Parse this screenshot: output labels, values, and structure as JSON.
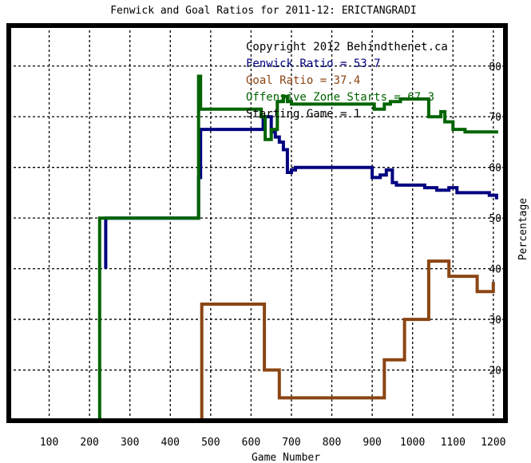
{
  "chart_data": {
    "type": "line",
    "title": "Fenwick and Goal Ratios for 2011-12: ERICTANGRADI",
    "xlabel": "Game Number",
    "ylabel": "Percentage",
    "xlim": [
      0,
      1230
    ],
    "ylim": [
      10,
      88
    ],
    "xticks": [
      100,
      200,
      300,
      400,
      500,
      600,
      700,
      800,
      900,
      1000,
      1100,
      1200
    ],
    "yticks": [
      20,
      30,
      40,
      50,
      60,
      70,
      80
    ],
    "grid": true,
    "annotations": [
      {
        "text": "Copyright 2012 Behindthenet.ca",
        "color": "#000000"
      },
      {
        "text": "Fenwick Ratio = 53.7",
        "color": "#000080"
      },
      {
        "text": "Goal Ratio = 37.4",
        "color": "#8b4513"
      },
      {
        "text": "Offensive Zone Starts = 67.3",
        "color": "#006400"
      },
      {
        "text": "Starting Game = 1",
        "color": "#000000"
      }
    ],
    "series": [
      {
        "color": "#000080",
        "points": [
          [
            240,
            40
          ],
          [
            240,
            50
          ],
          [
            470,
            50
          ],
          [
            470,
            58
          ],
          [
            475,
            58
          ],
          [
            475,
            67.5
          ],
          [
            630,
            67.5
          ],
          [
            630,
            70
          ],
          [
            650,
            70
          ],
          [
            650,
            67
          ],
          [
            660,
            67
          ],
          [
            660,
            66
          ],
          [
            670,
            66
          ],
          [
            670,
            65
          ],
          [
            680,
            65
          ],
          [
            680,
            63.5
          ],
          [
            690,
            63.5
          ],
          [
            690,
            59
          ],
          [
            700,
            59
          ],
          [
            700,
            59.5
          ],
          [
            710,
            59.5
          ],
          [
            710,
            60
          ],
          [
            900,
            60
          ],
          [
            900,
            58
          ],
          [
            920,
            58
          ],
          [
            920,
            58.5
          ],
          [
            935,
            58.5
          ],
          [
            935,
            59.5
          ],
          [
            950,
            59.5
          ],
          [
            950,
            57
          ],
          [
            960,
            57
          ],
          [
            960,
            56.5
          ],
          [
            1030,
            56.5
          ],
          [
            1030,
            56
          ],
          [
            1060,
            56
          ],
          [
            1060,
            55.5
          ],
          [
            1090,
            55.5
          ],
          [
            1090,
            56
          ],
          [
            1110,
            56
          ],
          [
            1110,
            55
          ],
          [
            1190,
            55
          ],
          [
            1190,
            54.5
          ],
          [
            1208,
            54.5
          ],
          [
            1208,
            53.7
          ]
        ]
      },
      {
        "color": "#8b4513",
        "points": [
          [
            478,
            10
          ],
          [
            478,
            33
          ],
          [
            633,
            33
          ],
          [
            633,
            20
          ],
          [
            670,
            20
          ],
          [
            670,
            14.5
          ],
          [
            930,
            14.5
          ],
          [
            930,
            22
          ],
          [
            980,
            22
          ],
          [
            980,
            30
          ],
          [
            1040,
            30
          ],
          [
            1040,
            41.5
          ],
          [
            1090,
            41.5
          ],
          [
            1090,
            38.5
          ],
          [
            1160,
            38.5
          ],
          [
            1160,
            35.5
          ],
          [
            1200,
            35.5
          ],
          [
            1200,
            37.4
          ]
        ]
      },
      {
        "color": "#006400",
        "points": [
          [
            225,
            10
          ],
          [
            225,
            50
          ],
          [
            470,
            50
          ],
          [
            470,
            78
          ],
          [
            475,
            78
          ],
          [
            475,
            71.5
          ],
          [
            625,
            71.5
          ],
          [
            625,
            70
          ],
          [
            635,
            70
          ],
          [
            635,
            65.5
          ],
          [
            650,
            65.5
          ],
          [
            650,
            67.5
          ],
          [
            665,
            67.5
          ],
          [
            665,
            73
          ],
          [
            680,
            73
          ],
          [
            680,
            74
          ],
          [
            690,
            74
          ],
          [
            690,
            73
          ],
          [
            700,
            73
          ],
          [
            700,
            72.5
          ],
          [
            905,
            72.5
          ],
          [
            905,
            71.5
          ],
          [
            930,
            71.5
          ],
          [
            930,
            72.5
          ],
          [
            945,
            72.5
          ],
          [
            945,
            73
          ],
          [
            970,
            73
          ],
          [
            970,
            73.5
          ],
          [
            1040,
            73.5
          ],
          [
            1040,
            70
          ],
          [
            1070,
            70
          ],
          [
            1070,
            71
          ],
          [
            1080,
            71
          ],
          [
            1080,
            69
          ],
          [
            1100,
            69
          ],
          [
            1100,
            67.5
          ],
          [
            1130,
            67.5
          ],
          [
            1130,
            67
          ],
          [
            1208,
            67
          ],
          [
            1208,
            67.3
          ]
        ]
      }
    ]
  }
}
